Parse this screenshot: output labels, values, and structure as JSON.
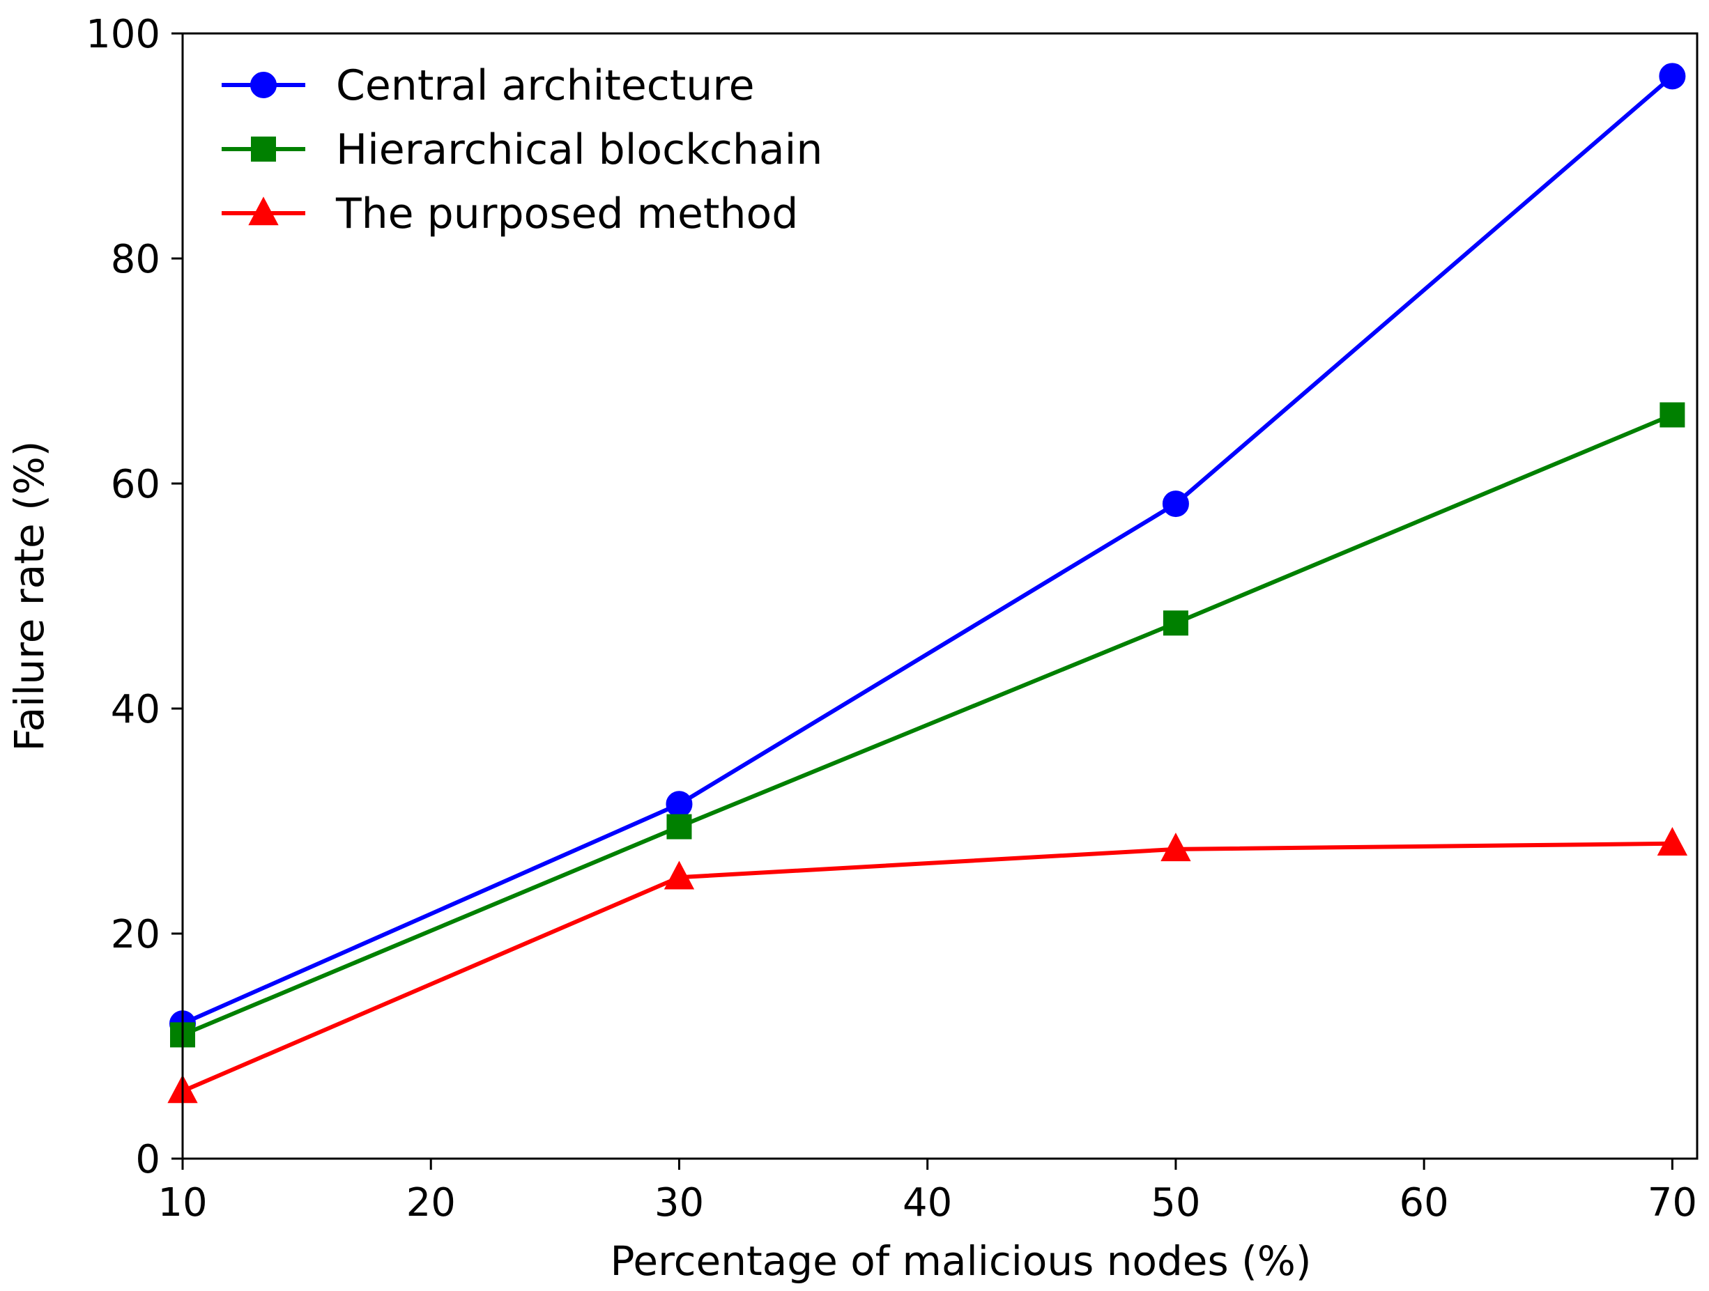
{
  "chart_data": {
    "type": "line",
    "title": "",
    "xlabel": "Percentage of malicious nodes (%)",
    "ylabel": "Failure rate (%)",
    "xlim": [
      10,
      71
    ],
    "ylim": [
      0,
      100
    ],
    "x_ticks": [
      "10",
      "20",
      "30",
      "40",
      "50",
      "60",
      "70"
    ],
    "y_ticks": [
      "0",
      "20",
      "40",
      "60",
      "80",
      "100"
    ],
    "grid": false,
    "legend_position": "top-left",
    "x": [
      10,
      30,
      50,
      70
    ],
    "series": [
      {
        "name": "Central architecture",
        "color": "#0000ff",
        "marker": "circle",
        "values": [
          12,
          31.5,
          58.2,
          96.2
        ]
      },
      {
        "name": "Hierarchical blockchain",
        "color": "#008000",
        "marker": "square",
        "values": [
          11,
          29.5,
          47.6,
          66.1
        ]
      },
      {
        "name": "The purposed method",
        "color": "#ff0000",
        "marker": "triangle",
        "values": [
          6,
          25,
          27.5,
          28
        ]
      }
    ]
  }
}
